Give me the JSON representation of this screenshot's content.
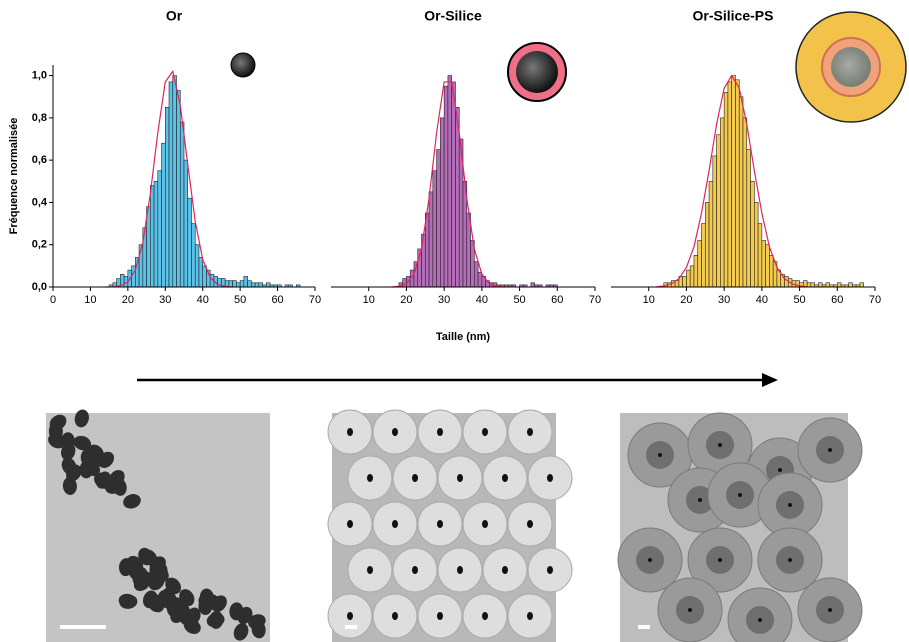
{
  "chart_data": [
    {
      "type": "histogram",
      "title": "Or",
      "ylabel": "Fréquence normalisée",
      "color": "#5bc3ea",
      "bins": [
        15,
        16,
        17,
        18,
        19,
        20,
        21,
        22,
        23,
        24,
        25,
        26,
        27,
        28,
        29,
        30,
        31,
        32,
        33,
        34,
        35,
        36,
        37,
        38,
        39,
        40,
        41,
        42,
        43,
        44,
        45,
        46,
        47,
        48,
        49,
        50,
        51,
        52,
        53,
        54,
        55,
        56,
        57,
        58,
        59,
        60,
        61,
        62,
        63,
        64,
        65,
        66
      ],
      "values": [
        0.01,
        0.02,
        0.04,
        0.06,
        0.05,
        0.08,
        0.1,
        0.14,
        0.2,
        0.28,
        0.38,
        0.48,
        0.5,
        0.55,
        0.68,
        0.85,
        0.97,
        1.0,
        0.93,
        0.78,
        0.6,
        0.42,
        0.3,
        0.2,
        0.14,
        0.1,
        0.08,
        0.06,
        0.05,
        0.04,
        0.04,
        0.03,
        0.03,
        0.03,
        0.02,
        0.03,
        0.05,
        0.03,
        0.02,
        0.02,
        0.02,
        0.01,
        0.02,
        0.01,
        0.01,
        0.01,
        0,
        0.01,
        0.01,
        0,
        0.01
      ],
      "fit": {
        "color": "#e0245e",
        "x": [
          14,
          16,
          18,
          20,
          22,
          24,
          26,
          28,
          30,
          32,
          34,
          36,
          38,
          40,
          42,
          44,
          46,
          48
        ],
        "values": [
          0,
          0.001,
          0.006,
          0.024,
          0.08,
          0.21,
          0.44,
          0.73,
          0.97,
          1.02,
          0.86,
          0.58,
          0.31,
          0.13,
          0.045,
          0.012,
          0.003,
          0
        ]
      },
      "xlim": [
        0,
        70
      ],
      "xticks": [
        0,
        10,
        20,
        30,
        40,
        50,
        60,
        70
      ],
      "ylim": [
        0,
        1.05
      ],
      "yticks": [
        {
          "value": 0,
          "label": "0,0"
        },
        {
          "value": 0.2,
          "label": "0,2"
        },
        {
          "value": 0.4,
          "label": "0,4"
        },
        {
          "value": 0.6,
          "label": "0,6"
        },
        {
          "value": 0.8,
          "label": "0,8"
        },
        {
          "value": 1.0,
          "label": "1,0"
        }
      ]
    },
    {
      "type": "histogram",
      "title": "Or-Silice",
      "xlabel": "Taille (nm)",
      "color": "#b56cb9",
      "bins": [
        18,
        19,
        20,
        21,
        22,
        23,
        24,
        25,
        26,
        27,
        28,
        29,
        30,
        31,
        32,
        33,
        34,
        35,
        36,
        37,
        38,
        39,
        40,
        41,
        42,
        43,
        44,
        45,
        46,
        47,
        48,
        49,
        50,
        51,
        52,
        53,
        54,
        55,
        56,
        57,
        58,
        59,
        60
      ],
      "values": [
        0.02,
        0.04,
        0.05,
        0.08,
        0.12,
        0.18,
        0.25,
        0.35,
        0.45,
        0.55,
        0.65,
        0.8,
        0.95,
        1.0,
        0.97,
        0.85,
        0.7,
        0.5,
        0.35,
        0.22,
        0.12,
        0.07,
        0.05,
        0.03,
        0.02,
        0.02,
        0.01,
        0.01,
        0.01,
        0.01,
        0.01,
        0,
        0.01,
        0.01,
        0,
        0.02,
        0.01,
        0.01,
        0,
        0.01,
        0.01,
        0.01
      ],
      "fit": {
        "color": "#e0245e",
        "x": [
          16,
          18,
          20,
          22,
          24,
          26,
          28,
          30,
          32,
          34,
          36,
          38,
          40,
          42,
          44,
          46
        ],
        "values": [
          0,
          0.003,
          0.015,
          0.061,
          0.18,
          0.42,
          0.73,
          0.97,
          0.97,
          0.73,
          0.42,
          0.18,
          0.061,
          0.015,
          0.003,
          0
        ]
      },
      "xlim": [
        0,
        70
      ],
      "xticks": [
        10,
        20,
        30,
        40,
        50,
        60,
        70
      ],
      "ylim": [
        0,
        1.05
      ]
    },
    {
      "type": "histogram",
      "title": "Or-Silice-PS",
      "color": "#f4cb4f",
      "bins": [
        14,
        15,
        16,
        17,
        18,
        19,
        20,
        21,
        22,
        23,
        24,
        25,
        26,
        27,
        28,
        29,
        30,
        31,
        32,
        33,
        34,
        35,
        36,
        37,
        38,
        39,
        40,
        41,
        42,
        43,
        44,
        45,
        46,
        47,
        48,
        49,
        50,
        51,
        52,
        53,
        54,
        55,
        56,
        57,
        58,
        59,
        60,
        61,
        62,
        63,
        64,
        65,
        66,
        67
      ],
      "values": [
        0.02,
        0.02,
        0.03,
        0.03,
        0.05,
        0.05,
        0.08,
        0.1,
        0.15,
        0.22,
        0.3,
        0.4,
        0.5,
        0.62,
        0.72,
        0.8,
        0.92,
        0.97,
        1.0,
        0.98,
        0.9,
        0.8,
        0.65,
        0.5,
        0.4,
        0.3,
        0.22,
        0.2,
        0.15,
        0.12,
        0.08,
        0.06,
        0.05,
        0.04,
        0.03,
        0.03,
        0.02,
        0.03,
        0.02,
        0.02,
        0.01,
        0.02,
        0.01,
        0.02,
        0.01,
        0.01,
        0.02,
        0.01,
        0.01,
        0.02,
        0.01,
        0.01,
        0.02
      ],
      "fit": {
        "color": "#e0245e",
        "x": [
          12,
          14,
          16,
          18,
          20,
          22,
          24,
          26,
          28,
          30,
          32,
          34,
          36,
          38,
          40,
          42,
          44,
          46,
          48,
          50,
          52
        ],
        "values": [
          0.001,
          0.005,
          0.015,
          0.039,
          0.093,
          0.19,
          0.35,
          0.55,
          0.77,
          0.94,
          1.0,
          0.94,
          0.77,
          0.55,
          0.35,
          0.19,
          0.093,
          0.039,
          0.015,
          0.005,
          0.001
        ]
      },
      "xlim": [
        0,
        70
      ],
      "xticks": [
        10,
        20,
        30,
        40,
        50,
        60,
        70
      ],
      "ylim": [
        0,
        1.05
      ]
    }
  ]
}
